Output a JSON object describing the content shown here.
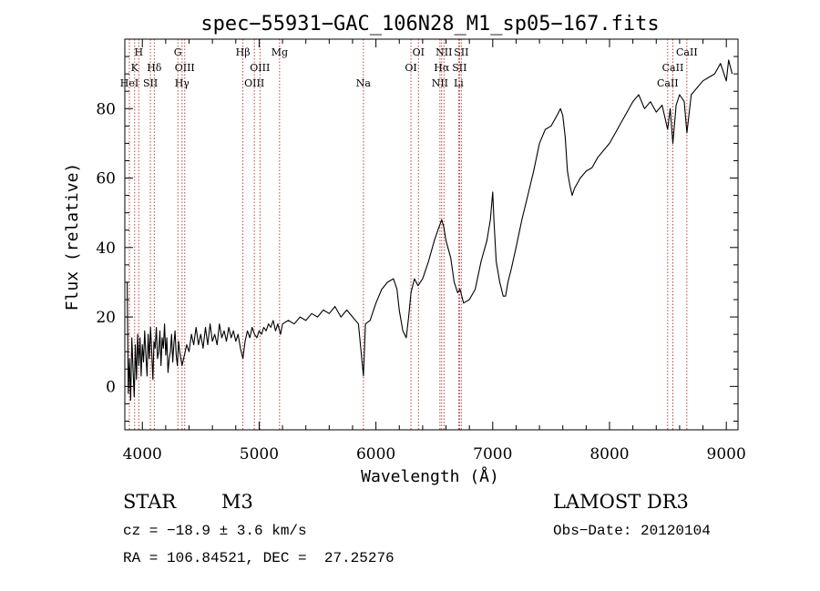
{
  "chart_data": {
    "type": "line",
    "title": "spec−55931−GAC_106N28_M1_sp05−167.fits",
    "xlabel": "Wavelength (Å)",
    "ylabel": "Flux (relative)",
    "xlim": [
      3850,
      9100
    ],
    "ylim": [
      -12.5,
      100
    ],
    "xticks": [
      4000,
      5000,
      6000,
      7000,
      8000,
      9000
    ],
    "yticks": [
      0,
      20,
      40,
      60,
      80
    ],
    "grid": false,
    "line_color": "#000000",
    "marker_color": "#b03030",
    "series": [
      {
        "name": "flux",
        "points": [
          [
            3870,
            30
          ],
          [
            3880,
            -2
          ],
          [
            3890,
            8
          ],
          [
            3900,
            -4
          ],
          [
            3910,
            14
          ],
          [
            3920,
            5
          ],
          [
            3930,
            -3
          ],
          [
            3940,
            12
          ],
          [
            3950,
            2
          ],
          [
            3960,
            15
          ],
          [
            3970,
            6
          ],
          [
            3980,
            14
          ],
          [
            3990,
            3
          ],
          [
            4000,
            12
          ],
          [
            4010,
            7
          ],
          [
            4020,
            16
          ],
          [
            4030,
            9
          ],
          [
            4040,
            3
          ],
          [
            4050,
            15
          ],
          [
            4060,
            8
          ],
          [
            4070,
            17
          ],
          [
            4080,
            10
          ],
          [
            4090,
            2
          ],
          [
            4100,
            13
          ],
          [
            4110,
            11
          ],
          [
            4120,
            17
          ],
          [
            4130,
            8
          ],
          [
            4140,
            10
          ],
          [
            4150,
            16
          ],
          [
            4160,
            6
          ],
          [
            4170,
            14
          ],
          [
            4180,
            11
          ],
          [
            4190,
            18
          ],
          [
            4200,
            9
          ],
          [
            4210,
            14
          ],
          [
            4220,
            4
          ],
          [
            4230,
            8
          ],
          [
            4240,
            10
          ],
          [
            4250,
            15
          ],
          [
            4260,
            7
          ],
          [
            4270,
            12
          ],
          [
            4280,
            16
          ],
          [
            4290,
            9
          ],
          [
            4300,
            6
          ],
          [
            4310,
            13
          ],
          [
            4320,
            10
          ],
          [
            4340,
            6
          ],
          [
            4360,
            9
          ],
          [
            4380,
            12
          ],
          [
            4400,
            10
          ],
          [
            4420,
            15
          ],
          [
            4440,
            12
          ],
          [
            4460,
            17
          ],
          [
            4480,
            12
          ],
          [
            4500,
            15
          ],
          [
            4520,
            11
          ],
          [
            4540,
            17
          ],
          [
            4560,
            12
          ],
          [
            4580,
            18
          ],
          [
            4600,
            13
          ],
          [
            4620,
            15
          ],
          [
            4640,
            12
          ],
          [
            4660,
            18
          ],
          [
            4680,
            14
          ],
          [
            4700,
            16
          ],
          [
            4720,
            13
          ],
          [
            4740,
            17
          ],
          [
            4760,
            14
          ],
          [
            4780,
            16
          ],
          [
            4800,
            13
          ],
          [
            4820,
            15
          ],
          [
            4840,
            11
          ],
          [
            4861,
            8
          ],
          [
            4880,
            13
          ],
          [
            4900,
            16
          ],
          [
            4920,
            14
          ],
          [
            4940,
            17
          ],
          [
            4960,
            15
          ],
          [
            4980,
            14
          ],
          [
            5000,
            16
          ],
          [
            5020,
            15
          ],
          [
            5040,
            17
          ],
          [
            5060,
            16
          ],
          [
            5080,
            18
          ],
          [
            5100,
            17
          ],
          [
            5120,
            19
          ],
          [
            5140,
            16
          ],
          [
            5160,
            18
          ],
          [
            5183,
            15
          ],
          [
            5200,
            18
          ],
          [
            5250,
            19
          ],
          [
            5300,
            18
          ],
          [
            5350,
            20
          ],
          [
            5400,
            19
          ],
          [
            5450,
            21
          ],
          [
            5500,
            20
          ],
          [
            5550,
            22
          ],
          [
            5600,
            21
          ],
          [
            5650,
            23
          ],
          [
            5700,
            20
          ],
          [
            5750,
            22
          ],
          [
            5800,
            20
          ],
          [
            5850,
            18
          ],
          [
            5893,
            3
          ],
          [
            5910,
            18
          ],
          [
            5950,
            19
          ],
          [
            6000,
            24
          ],
          [
            6050,
            28
          ],
          [
            6100,
            30
          ],
          [
            6150,
            31
          ],
          [
            6180,
            28
          ],
          [
            6200,
            22
          ],
          [
            6230,
            16
          ],
          [
            6260,
            14
          ],
          [
            6280,
            20
          ],
          [
            6300,
            27
          ],
          [
            6330,
            31
          ],
          [
            6360,
            29
          ],
          [
            6400,
            31
          ],
          [
            6450,
            36
          ],
          [
            6500,
            42
          ],
          [
            6530,
            45
          ],
          [
            6563,
            48
          ],
          [
            6580,
            46
          ],
          [
            6600,
            42
          ],
          [
            6640,
            37
          ],
          [
            6670,
            30
          ],
          [
            6700,
            27
          ],
          [
            6720,
            28
          ],
          [
            6750,
            24
          ],
          [
            6800,
            25
          ],
          [
            6850,
            28
          ],
          [
            6900,
            36
          ],
          [
            6950,
            42
          ],
          [
            6980,
            48
          ],
          [
            7000,
            56
          ],
          [
            7010,
            48
          ],
          [
            7030,
            36
          ],
          [
            7060,
            30
          ],
          [
            7090,
            26
          ],
          [
            7110,
            26
          ],
          [
            7130,
            30
          ],
          [
            7160,
            34
          ],
          [
            7200,
            40
          ],
          [
            7250,
            48
          ],
          [
            7300,
            55
          ],
          [
            7350,
            62
          ],
          [
            7400,
            70
          ],
          [
            7450,
            74
          ],
          [
            7500,
            75
          ],
          [
            7550,
            78
          ],
          [
            7580,
            80
          ],
          [
            7600,
            78
          ],
          [
            7620,
            72
          ],
          [
            7640,
            62
          ],
          [
            7660,
            58
          ],
          [
            7680,
            55
          ],
          [
            7700,
            57
          ],
          [
            7750,
            60
          ],
          [
            7800,
            62
          ],
          [
            7850,
            63
          ],
          [
            7900,
            66
          ],
          [
            7950,
            68
          ],
          [
            8000,
            70
          ],
          [
            8050,
            73
          ],
          [
            8100,
            76
          ],
          [
            8150,
            79
          ],
          [
            8200,
            82
          ],
          [
            8250,
            84
          ],
          [
            8300,
            80
          ],
          [
            8350,
            82
          ],
          [
            8400,
            79
          ],
          [
            8450,
            81
          ],
          [
            8498,
            74
          ],
          [
            8520,
            80
          ],
          [
            8542,
            70
          ],
          [
            8570,
            81
          ],
          [
            8600,
            84
          ],
          [
            8640,
            82
          ],
          [
            8662,
            73
          ],
          [
            8700,
            84
          ],
          [
            8750,
            86
          ],
          [
            8800,
            88
          ],
          [
            8850,
            89
          ],
          [
            8900,
            90
          ],
          [
            8950,
            93
          ],
          [
            9000,
            88
          ],
          [
            9020,
            94
          ],
          [
            9050,
            90
          ]
        ]
      }
    ],
    "line_markers": [
      {
        "label": "H",
        "wavelength": 3969,
        "row": 0
      },
      {
        "label": "K",
        "wavelength": 3934,
        "row": 1
      },
      {
        "label": "HeI",
        "wavelength": 3889,
        "row": 2
      },
      {
        "label": "Hδ",
        "wavelength": 4102,
        "row": 1
      },
      {
        "label": "SII",
        "wavelength": 4069,
        "row": 2
      },
      {
        "label": "G",
        "wavelength": 4304,
        "row": 0
      },
      {
        "label": "OIII",
        "wavelength": 4363,
        "row": 1
      },
      {
        "label": "Hγ",
        "wavelength": 4340,
        "row": 2
      },
      {
        "label": "Hβ",
        "wavelength": 4861,
        "row": 0
      },
      {
        "label": "OIII",
        "wavelength": 5007,
        "row": 1
      },
      {
        "label": "OIII",
        "wavelength": 4959,
        "row": 2
      },
      {
        "label": "Mg",
        "wavelength": 5175,
        "row": 0
      },
      {
        "label": "Na",
        "wavelength": 5893,
        "row": 2
      },
      {
        "label": "OI",
        "wavelength": 6364,
        "row": 0
      },
      {
        "label": "OI",
        "wavelength": 6300,
        "row": 1
      },
      {
        "label": "NII",
        "wavelength": 6583,
        "row": 0
      },
      {
        "label": "Hα",
        "wavelength": 6563,
        "row": 1
      },
      {
        "label": "NII",
        "wavelength": 6548,
        "row": 2
      },
      {
        "label": "SII",
        "wavelength": 6731,
        "row": 0
      },
      {
        "label": "SII",
        "wavelength": 6716,
        "row": 1
      },
      {
        "label": "Li",
        "wavelength": 6708,
        "row": 2
      },
      {
        "label": "CaII",
        "wavelength": 8662,
        "row": 0
      },
      {
        "label": "CaII",
        "wavelength": 8542,
        "row": 1
      },
      {
        "label": "CaII",
        "wavelength": 8498,
        "row": 2
      }
    ]
  },
  "info": {
    "object_class": "STAR",
    "subclass": "M3",
    "survey": "LAMOST DR3",
    "velocity": "cz = −18.9 ± 3.6 km/s",
    "obs_date": "Obs−Date: 20120104",
    "coords": "RA = 106.84521, DEC =  27.25276"
  }
}
